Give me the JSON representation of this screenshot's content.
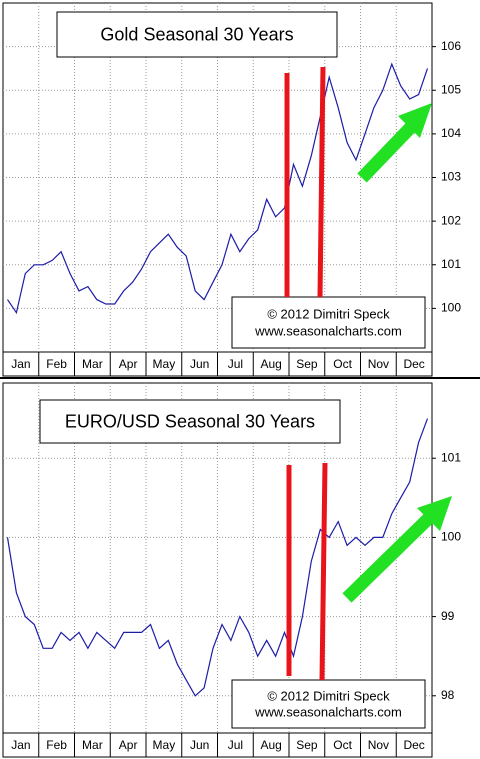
{
  "chart_data": [
    {
      "type": "line",
      "title": "Gold Seasonal 30 Years",
      "annotations": [
        "© 2012 Dimitri Speck",
        "www.seasonalcharts.com"
      ],
      "categories": [
        "Jan",
        null,
        null,
        null,
        "Feb",
        null,
        null,
        null,
        "Mar",
        null,
        null,
        null,
        "Apr",
        null,
        null,
        null,
        "May",
        null,
        null,
        null,
        "Jun",
        null,
        null,
        null,
        "Jul",
        null,
        null,
        null,
        "Aug",
        null,
        null,
        null,
        "Sep",
        null,
        null,
        null,
        "Oct",
        null,
        null,
        null,
        "Nov",
        null,
        null,
        null,
        "Dec",
        null,
        null,
        null
      ],
      "values": [
        100.2,
        99.9,
        100.8,
        101.0,
        101.0,
        101.1,
        101.3,
        100.8,
        100.4,
        100.5,
        100.2,
        100.1,
        100.1,
        100.4,
        100.6,
        100.9,
        101.3,
        101.5,
        101.7,
        101.4,
        101.2,
        100.4,
        100.2,
        100.6,
        101.0,
        101.7,
        101.3,
        101.6,
        101.8,
        102.5,
        102.1,
        102.3,
        103.3,
        102.8,
        103.5,
        104.4,
        105.3,
        104.6,
        103.8,
        103.4,
        104.0,
        104.6,
        105.0,
        105.6,
        105.1,
        104.8,
        104.9,
        105.5
      ],
      "color": "#1c1ca8",
      "ylim": [
        99.0,
        107.0
      ],
      "yticks": [
        100,
        101,
        102,
        103,
        104,
        105,
        106
      ],
      "grid": true
    },
    {
      "type": "line",
      "title": "EURO/USD Seasonal 30 Years",
      "annotations": [
        "© 2012 Dimitri Speck",
        "www.seasonalcharts.com"
      ],
      "categories": [
        "Jan",
        null,
        null,
        null,
        "Feb",
        null,
        null,
        null,
        "Mar",
        null,
        null,
        null,
        "Apr",
        null,
        null,
        null,
        "May",
        null,
        null,
        null,
        "Jun",
        null,
        null,
        null,
        "Jul",
        null,
        null,
        null,
        "Aug",
        null,
        null,
        null,
        "Sep",
        null,
        null,
        null,
        "Oct",
        null,
        null,
        null,
        "Nov",
        null,
        null,
        null,
        "Dec",
        null,
        null,
        null
      ],
      "values": [
        100.0,
        99.3,
        99.0,
        98.9,
        98.6,
        98.6,
        98.8,
        98.7,
        98.8,
        98.6,
        98.8,
        98.7,
        98.6,
        98.8,
        98.8,
        98.8,
        98.9,
        98.6,
        98.7,
        98.4,
        98.2,
        98.0,
        98.1,
        98.6,
        98.9,
        98.7,
        99.0,
        98.8,
        98.5,
        98.7,
        98.5,
        98.8,
        98.5,
        99.0,
        99.7,
        100.1,
        100.0,
        100.2,
        99.9,
        100.0,
        99.9,
        100.0,
        100.0,
        100.3,
        100.5,
        100.7,
        101.2,
        101.5
      ],
      "color": "#1c1ca8",
      "ylim": [
        97.53,
        101.95
      ],
      "yticks": [
        98,
        99,
        100,
        101
      ],
      "grid": true
    }
  ]
}
